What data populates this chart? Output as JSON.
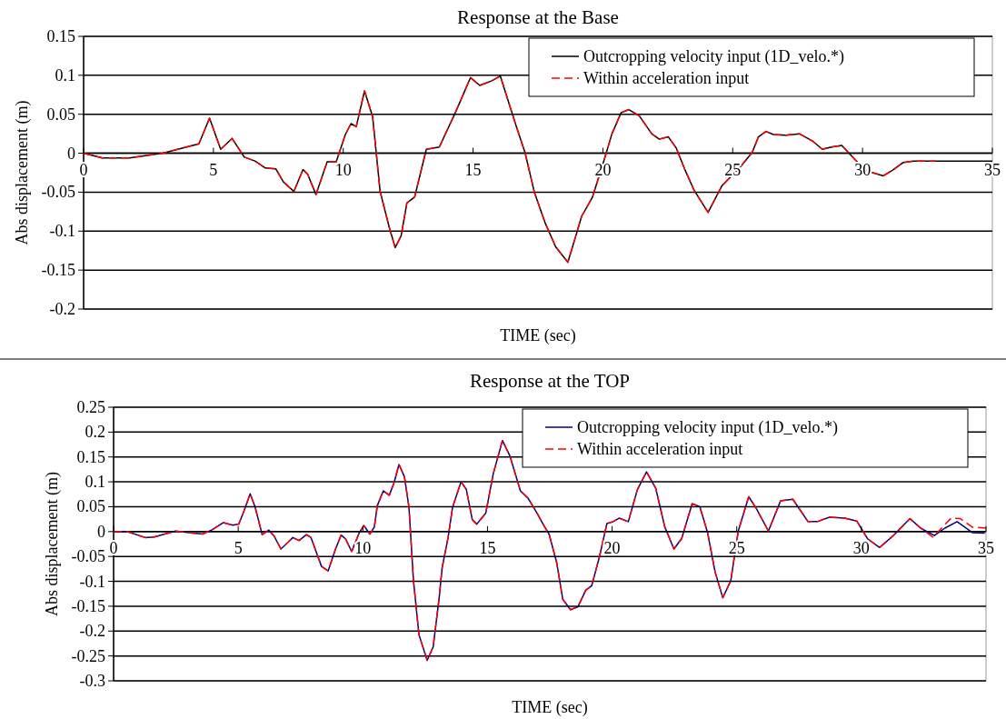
{
  "chart_data": [
    {
      "type": "line",
      "title": "Response at the Base",
      "xlabel": "TIME (sec)",
      "ylabel": "Abs displacement  (m)",
      "xlim": [
        0,
        35
      ],
      "xticks": [
        0,
        5,
        10,
        15,
        20,
        25,
        30,
        35
      ],
      "ylim": [
        -0.2,
        0.15
      ],
      "yticks": [
        -0.2,
        -0.15,
        -0.1,
        -0.05,
        0,
        0.05,
        0.1,
        0.15
      ],
      "grid": "y",
      "legend": "top right",
      "series": [
        {
          "name": "Outcropping velocity input (1D_velo.*)",
          "color": "#000000",
          "line_style": "solid",
          "x": [
            0,
            0.72,
            1.77,
            3.05,
            4.44,
            4.85,
            5.28,
            5.72,
            6.19,
            6.6,
            7.0,
            7.4,
            7.7,
            8.1,
            8.45,
            8.63,
            8.95,
            9.38,
            9.73,
            10.08,
            10.3,
            10.5,
            10.82,
            11.13,
            11.42,
            11.77,
            12.0,
            12.23,
            12.45,
            12.75,
            13.2,
            13.7,
            14.33,
            14.9,
            15.26,
            15.72,
            16.05,
            16.65,
            17.0,
            17.36,
            17.77,
            18.18,
            18.65,
            18.94,
            19.18,
            19.59,
            20,
            20.35,
            20.7,
            21.0,
            21.4,
            21.88,
            22.17,
            22.52,
            22.82,
            23.17,
            23.52,
            24.05,
            24.58,
            25.28,
            25.75,
            25.99,
            26.28,
            26.57,
            27.04,
            27.57,
            28.1,
            28.45,
            28.8,
            29.2,
            29.62,
            30.1,
            30.8,
            31.15,
            31.56,
            31.97,
            32.8,
            35
          ],
          "values": [
            0,
            -0.006,
            -0.006,
            0,
            0.012,
            0.045,
            0.005,
            0.019,
            -0.005,
            -0.01,
            -0.019,
            -0.02,
            -0.037,
            -0.049,
            -0.021,
            -0.027,
            -0.053,
            -0.011,
            -0.011,
            0.024,
            0.038,
            0.034,
            0.08,
            0.047,
            -0.049,
            -0.095,
            -0.121,
            -0.106,
            -0.064,
            -0.056,
            0.005,
            0.008,
            0.053,
            0.097,
            0.087,
            0.093,
            0.099,
            0.036,
            0.001,
            -0.05,
            -0.089,
            -0.12,
            -0.14,
            -0.108,
            -0.081,
            -0.057,
            -0.014,
            0.025,
            0.052,
            0.056,
            0.048,
            0.025,
            0.018,
            0.021,
            0.007,
            -0.022,
            -0.048,
            -0.076,
            -0.042,
            -0.018,
            0.001,
            0.021,
            0.028,
            0.024,
            0.023,
            0.025,
            0.015,
            0.005,
            0.008,
            0.01,
            -0.005,
            -0.022,
            -0.029,
            -0.022,
            -0.012,
            -0.01,
            -0.01,
            -0.01
          ]
        },
        {
          "name": "Within acceleration input",
          "color": "#ff0000",
          "line_style": "dashed",
          "x": [
            0,
            0.72,
            1.77,
            3.05,
            4.44,
            4.85,
            5.28,
            5.72,
            6.19,
            6.6,
            7.0,
            7.4,
            7.7,
            8.1,
            8.45,
            8.63,
            8.95,
            9.38,
            9.73,
            10.08,
            10.3,
            10.5,
            10.82,
            11.13,
            11.42,
            11.77,
            12.0,
            12.23,
            12.45,
            12.75,
            13.2,
            13.7,
            14.33,
            14.9,
            15.26,
            15.72,
            16.05,
            16.65,
            17.0,
            17.36,
            17.77,
            18.18,
            18.65,
            18.94,
            19.18,
            19.59,
            20,
            20.35,
            20.7,
            21.0,
            21.4,
            21.88,
            22.17,
            22.52,
            22.82,
            23.17,
            23.52,
            24.05,
            24.58,
            25.28,
            25.75,
            25.99,
            26.28,
            26.57,
            27.04,
            27.57,
            28.1,
            28.45,
            28.8,
            29.2,
            29.62,
            30.1,
            30.8,
            31.15,
            31.56,
            31.97,
            32.8
          ],
          "values": [
            0,
            -0.006,
            -0.006,
            0,
            0.012,
            0.045,
            0.005,
            0.019,
            -0.005,
            -0.01,
            -0.019,
            -0.02,
            -0.037,
            -0.049,
            -0.021,
            -0.027,
            -0.053,
            -0.011,
            -0.011,
            0.024,
            0.038,
            0.034,
            0.08,
            0.047,
            -0.049,
            -0.095,
            -0.121,
            -0.106,
            -0.064,
            -0.056,
            0.005,
            0.008,
            0.053,
            0.097,
            0.087,
            0.093,
            0.099,
            0.036,
            0.001,
            -0.05,
            -0.089,
            -0.12,
            -0.14,
            -0.108,
            -0.081,
            -0.057,
            -0.014,
            0.025,
            0.052,
            0.056,
            0.048,
            0.025,
            0.018,
            0.021,
            0.007,
            -0.022,
            -0.048,
            -0.076,
            -0.042,
            -0.018,
            0.001,
            0.021,
            0.028,
            0.024,
            0.023,
            0.025,
            0.015,
            0.005,
            0.008,
            0.01,
            -0.005,
            -0.022,
            -0.029,
            -0.022,
            -0.012,
            -0.01,
            -0.01
          ]
        }
      ]
    },
    {
      "type": "line",
      "title": "Response at the TOP",
      "xlabel": "TIME (sec)",
      "ylabel": "Abs displacement  (m)",
      "xlim": [
        0,
        35
      ],
      "xticks": [
        0,
        5,
        10,
        15,
        20,
        25,
        30,
        35
      ],
      "ylim": [
        -0.3,
        0.25
      ],
      "yticks": [
        -0.3,
        -0.25,
        -0.2,
        -0.15,
        -0.1,
        -0.05,
        0,
        0.05,
        0.1,
        0.15,
        0.2,
        0.25
      ],
      "grid": "y",
      "legend": "top right",
      "series": [
        {
          "name": "Outcropping velocity input (1D_velo.*)",
          "color": "#000080",
          "line_style": "solid",
          "x": [
            0,
            0.54,
            1.27,
            1.63,
            2.48,
            3.2,
            3.57,
            3.93,
            4.41,
            4.78,
            5.02,
            5.2,
            5.48,
            5.68,
            5.96,
            6.23,
            6.44,
            6.71,
            7.01,
            7.19,
            7.44,
            7.74,
            7.92,
            8.19,
            8.34,
            8.61,
            8.89,
            9.13,
            9.31,
            9.55,
            9.85,
            10.04,
            10.28,
            10.46,
            10.58,
            10.82,
            11.06,
            11.25,
            11.45,
            11.67,
            11.85,
            12.03,
            12.25,
            12.58,
            12.82,
            13.06,
            13.18,
            13.42,
            13.6,
            13.94,
            14.15,
            14.39,
            14.57,
            14.93,
            15.23,
            15.6,
            15.9,
            16.32,
            16.63,
            16.99,
            17.23,
            17.47,
            17.78,
            18.02,
            18.33,
            18.63,
            18.94,
            19.18,
            19.49,
            19.79,
            20.04,
            20.28,
            20.65,
            21.01,
            21.38,
            21.75,
            22.11,
            22.48,
            22.79,
            23.21,
            23.52,
            23.83,
            24.13,
            24.44,
            24.76,
            25.06,
            25.48,
            25.78,
            26.27,
            26.76,
            27.25,
            27.86,
            28.23,
            28.72,
            29.33,
            29.82,
            30.24,
            30.73,
            31.28,
            31.95,
            32.38,
            32.93,
            33.35,
            33.84,
            34.45,
            34.95
          ],
          "values": [
            0,
            0,
            -0.012,
            -0.011,
            0.001,
            -0.003,
            -0.005,
            0.003,
            0.018,
            0.013,
            0.015,
            0.037,
            0.076,
            0.049,
            -0.006,
            0.003,
            -0.009,
            -0.035,
            -0.021,
            -0.012,
            -0.018,
            -0.006,
            -0.012,
            -0.049,
            -0.07,
            -0.079,
            -0.037,
            -0.007,
            -0.015,
            -0.04,
            -0.003,
            0.012,
            -0.005,
            0.009,
            0.052,
            0.082,
            0.073,
            0.098,
            0.135,
            0.11,
            0.049,
            -0.098,
            -0.207,
            -0.259,
            -0.232,
            -0.134,
            -0.073,
            -0.012,
            0.049,
            0.1,
            0.085,
            0.024,
            0.015,
            0.037,
            0.116,
            0.183,
            0.152,
            0.082,
            0.067,
            0.037,
            0.015,
            -0.005,
            -0.063,
            -0.136,
            -0.157,
            -0.151,
            -0.118,
            -0.109,
            -0.051,
            0.016,
            0.02,
            0.027,
            0.02,
            0.084,
            0.12,
            0.087,
            0.01,
            -0.035,
            -0.014,
            0.056,
            0.05,
            -0.002,
            -0.081,
            -0.133,
            -0.099,
            0.001,
            0.07,
            0.047,
            0.001,
            0.062,
            0.065,
            0.02,
            0.02,
            0.029,
            0.027,
            0.021,
            -0.014,
            -0.032,
            -0.008,
            0.026,
            0.007,
            -0.008,
            0.007,
            0.02,
            -0.002,
            -0.003
          ]
        },
        {
          "name": "Within acceleration input",
          "color": "#ff0000",
          "line_style": "dashed",
          "x": [
            0,
            0.54,
            1.27,
            1.63,
            2.48,
            3.2,
            3.57,
            3.93,
            4.41,
            4.78,
            5.02,
            5.2,
            5.48,
            5.68,
            5.96,
            6.23,
            6.44,
            6.71,
            7.01,
            7.19,
            7.44,
            7.74,
            7.92,
            8.19,
            8.34,
            8.61,
            8.89,
            9.13,
            9.31,
            9.55,
            9.85,
            10.04,
            10.28,
            10.46,
            10.58,
            10.82,
            11.06,
            11.25,
            11.45,
            11.67,
            11.85,
            12.03,
            12.25,
            12.58,
            12.82,
            13.06,
            13.18,
            13.42,
            13.6,
            13.94,
            14.15,
            14.39,
            14.57,
            14.93,
            15.23,
            15.6,
            15.9,
            16.32,
            16.63,
            16.99,
            17.23,
            17.47,
            17.78,
            18.02,
            18.33,
            18.63,
            18.94,
            19.18,
            19.49,
            19.79,
            20.04,
            20.28,
            20.65,
            21.01,
            21.38,
            21.75,
            22.11,
            22.48,
            22.79,
            23.21,
            23.52,
            23.83,
            24.13,
            24.44,
            24.76,
            25.06,
            25.48,
            25.78,
            26.27,
            26.76,
            27.25,
            27.86,
            28.23,
            28.72,
            29.33,
            29.82,
            30.24,
            30.73,
            31.28,
            31.95,
            32.38,
            32.87,
            33.6,
            33.97,
            34.45,
            35
          ],
          "values": [
            0,
            0,
            -0.012,
            -0.011,
            0.001,
            -0.003,
            -0.005,
            0.003,
            0.018,
            0.013,
            0.015,
            0.037,
            0.076,
            0.049,
            -0.006,
            0.003,
            -0.009,
            -0.035,
            -0.021,
            -0.012,
            -0.018,
            -0.006,
            -0.012,
            -0.049,
            -0.07,
            -0.079,
            -0.037,
            -0.007,
            -0.015,
            -0.04,
            -0.003,
            0.012,
            -0.005,
            0.009,
            0.052,
            0.082,
            0.073,
            0.098,
            0.135,
            0.11,
            0.049,
            -0.098,
            -0.207,
            -0.259,
            -0.232,
            -0.134,
            -0.073,
            -0.012,
            0.049,
            0.1,
            0.085,
            0.024,
            0.015,
            0.037,
            0.116,
            0.183,
            0.152,
            0.082,
            0.067,
            0.037,
            0.015,
            -0.005,
            -0.063,
            -0.136,
            -0.157,
            -0.151,
            -0.118,
            -0.109,
            -0.051,
            0.016,
            0.02,
            0.027,
            0.02,
            0.084,
            0.12,
            0.087,
            0.01,
            -0.035,
            -0.014,
            0.056,
            0.05,
            -0.002,
            -0.081,
            -0.133,
            -0.099,
            0.001,
            0.07,
            0.047,
            0.001,
            0.062,
            0.065,
            0.02,
            0.02,
            0.029,
            0.027,
            0.021,
            -0.014,
            -0.032,
            -0.008,
            0.026,
            0.007,
            -0.011,
            0.027,
            0.026,
            0.009,
            0.007
          ]
        }
      ]
    }
  ]
}
